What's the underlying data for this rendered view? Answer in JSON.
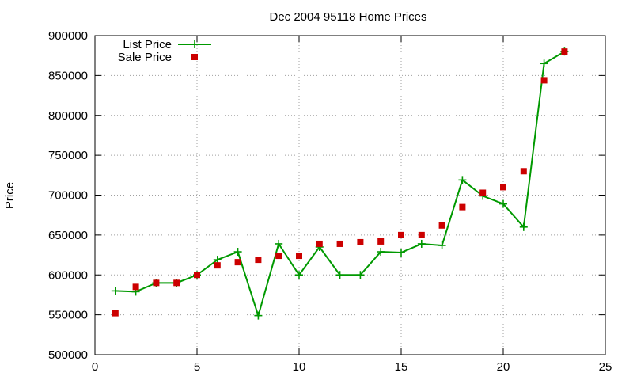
{
  "chart_data": {
    "type": "line",
    "title": "Dec 2004 95118 Home Prices",
    "xlabel": "",
    "ylabel": "Price",
    "xlim": [
      0,
      25
    ],
    "ylim": [
      500000,
      900000
    ],
    "xticks": [
      0,
      5,
      10,
      15,
      20,
      25
    ],
    "yticks": [
      500000,
      550000,
      600000,
      650000,
      700000,
      750000,
      800000,
      850000,
      900000
    ],
    "grid": true,
    "legend_position": "top-left",
    "series": [
      {
        "name": "List Price",
        "style": "line-plus",
        "color": "#009900",
        "x": [
          1,
          2,
          3,
          4,
          5,
          6,
          7,
          8,
          9,
          10,
          11,
          12,
          13,
          14,
          15,
          16,
          17,
          18,
          19,
          20,
          21,
          22,
          23
        ],
        "values": [
          580000,
          579000,
          590000,
          590000,
          600000,
          619000,
          629000,
          549000,
          639000,
          600000,
          635000,
          600000,
          600000,
          629000,
          628000,
          639000,
          637000,
          719000,
          699000,
          689000,
          660000,
          865000,
          880000
        ]
      },
      {
        "name": "Sale Price",
        "style": "square-points",
        "color": "#cc0000",
        "x": [
          1,
          2,
          3,
          4,
          5,
          6,
          7,
          8,
          9,
          10,
          11,
          12,
          13,
          14,
          15,
          16,
          17,
          18,
          19,
          20,
          21,
          22,
          23
        ],
        "values": [
          552000,
          585000,
          590000,
          590000,
          600000,
          612000,
          616000,
          619000,
          624000,
          624000,
          639000,
          639000,
          641000,
          642000,
          650000,
          650000,
          662000,
          685000,
          703000,
          710000,
          730000,
          844000,
          880000
        ]
      }
    ]
  }
}
